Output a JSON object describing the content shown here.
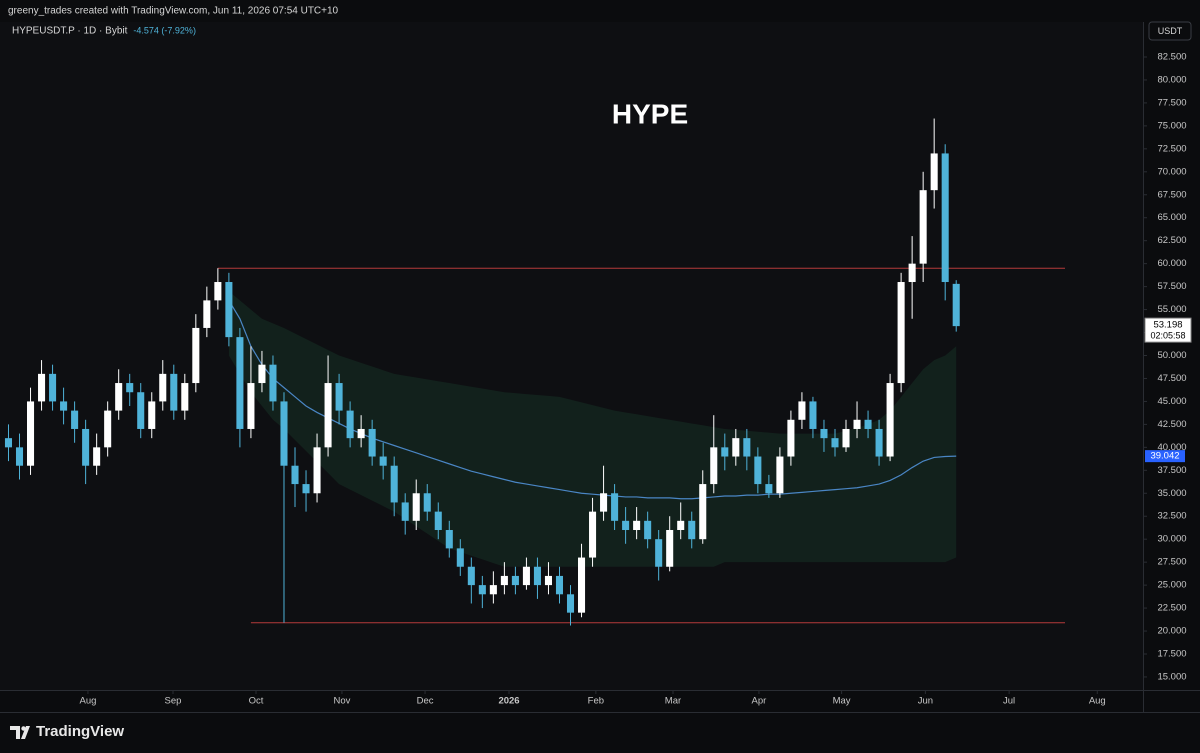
{
  "header": {
    "credit": "greeny_trades created with TradingView.com, Jun 11, 2026 07:54 UTC+10",
    "logo": "TradingView"
  },
  "chart_data": {
    "type": "candlestick",
    "title": "HYPE",
    "symbol": "HYPEUSDT.P · 1D · Bybit",
    "change": "-4.574 (-7.92%)",
    "currency": "USDT",
    "countdown": "02:05:58",
    "categories": [
      null,
      null,
      null,
      null,
      null,
      null,
      null,
      null,
      null,
      null,
      null,
      null,
      null,
      null,
      null,
      null,
      null,
      null,
      null,
      null,
      null,
      null,
      null,
      null,
      null,
      null,
      null,
      null,
      null,
      null,
      null,
      null,
      null,
      null,
      null,
      null,
      null,
      null,
      null,
      null,
      null,
      null,
      null,
      null,
      null,
      null,
      null,
      null,
      null,
      null,
      null,
      null,
      null,
      null,
      null,
      null,
      null,
      null,
      null,
      null,
      null,
      null,
      null,
      null,
      null,
      null,
      null,
      null,
      null,
      null,
      null,
      null,
      null,
      null,
      null,
      null,
      null,
      null,
      null,
      null,
      null,
      null,
      null,
      null,
      null,
      null,
      null
    ],
    "open": [
      41,
      40,
      38,
      45,
      48,
      45,
      44,
      42,
      38,
      40,
      44,
      47,
      46,
      42,
      45,
      48,
      44,
      47,
      53,
      56,
      58,
      52,
      42,
      47,
      49,
      45,
      38,
      36,
      35,
      40,
      47,
      44,
      41,
      42,
      39,
      38,
      34,
      32,
      35,
      33,
      31,
      29,
      27,
      25,
      24,
      25,
      26,
      25,
      27,
      25,
      26,
      24,
      22,
      28,
      33,
      35,
      32,
      31,
      32,
      30,
      27,
      31,
      32,
      30,
      36,
      40,
      39,
      41,
      39,
      36,
      35,
      39,
      43,
      45,
      42,
      41,
      40,
      42,
      43,
      42,
      39,
      47,
      58,
      60,
      68,
      72,
      57.8
    ],
    "high": [
      42.5,
      41.5,
      46.5,
      49.5,
      49,
      46.5,
      45,
      43,
      41.5,
      45,
      48.5,
      48,
      47,
      46,
      49.5,
      49,
      48,
      54.5,
      57.5,
      59.5,
      59,
      53,
      51,
      50.5,
      50,
      46,
      40,
      37.5,
      41.5,
      50,
      48,
      45,
      43.5,
      43,
      40.5,
      39,
      35,
      36.5,
      36,
      34,
      32,
      30,
      28,
      26,
      26.5,
      27.5,
      27,
      28,
      28,
      27.5,
      27,
      25,
      29.5,
      34.5,
      38,
      36,
      33.5,
      33.5,
      33,
      31,
      32.5,
      34,
      33,
      37.5,
      43.5,
      41.5,
      42,
      42,
      40,
      37,
      40,
      44,
      46,
      45.5,
      43,
      42,
      43,
      45,
      44,
      43,
      48,
      59,
      63,
      70,
      75.8,
      73,
      58.2
    ],
    "low": [
      38.5,
      36.5,
      37,
      44,
      44,
      42.5,
      40.5,
      36,
      37,
      39,
      43,
      44.5,
      41,
      41,
      44,
      43,
      43,
      46,
      52,
      55,
      51,
      40,
      41,
      46,
      44,
      20.9,
      33.5,
      33,
      34,
      39,
      42.5,
      40,
      40,
      38,
      36.5,
      32.5,
      30.5,
      31,
      32,
      30,
      28,
      26,
      23,
      22.5,
      23,
      24,
      24,
      24.5,
      23.5,
      24,
      23,
      20.6,
      21.5,
      27,
      32,
      31,
      29.5,
      30,
      29,
      25.5,
      26.5,
      30,
      29,
      29.5,
      35,
      37.5,
      38,
      37.5,
      35,
      34.5,
      34.5,
      38,
      42,
      41,
      39.5,
      39,
      39.5,
      41,
      41,
      38,
      38.5,
      46,
      54,
      58,
      66,
      56,
      52.6
    ],
    "close": [
      40,
      38,
      45,
      48,
      45,
      44,
      42,
      38,
      40,
      44,
      47,
      46,
      42,
      45,
      48,
      44,
      47,
      53,
      56,
      58,
      52,
      42,
      47,
      49,
      45,
      38,
      36,
      35,
      40,
      47,
      44,
      41,
      42,
      39,
      38,
      34,
      32,
      35,
      33,
      31,
      29,
      27,
      25,
      24,
      25,
      26,
      25,
      27,
      25,
      26,
      24,
      22,
      28,
      33,
      35,
      32,
      31,
      32,
      30,
      27,
      31,
      32,
      30,
      36,
      40,
      39,
      41,
      39,
      36,
      35,
      39,
      43,
      45,
      42,
      41,
      40,
      42,
      43,
      42,
      39,
      47,
      58,
      60,
      68,
      72,
      58,
      53.198
    ],
    "up_color": "#ffffff",
    "down_color": "#4fb3d9",
    "ma": {
      "color": "#4a86c5",
      "values": [
        null,
        null,
        null,
        null,
        null,
        null,
        null,
        null,
        null,
        null,
        null,
        null,
        null,
        null,
        null,
        null,
        null,
        null,
        null,
        null,
        56,
        54,
        51,
        49,
        47.5,
        46.5,
        45.5,
        44.5,
        43.8,
        43.2,
        42.6,
        42,
        41.5,
        41,
        40.6,
        40.2,
        39.8,
        39.4,
        39,
        38.6,
        38.2,
        37.8,
        37.4,
        37.1,
        36.8,
        36.5,
        36.2,
        36,
        35.8,
        35.6,
        35.4,
        35.2,
        35,
        34.9,
        34.8,
        34.7,
        34.6,
        34.6,
        34.5,
        34.5,
        34.5,
        34.4,
        34.4,
        34.5,
        34.6,
        34.7,
        34.7,
        34.8,
        34.8,
        34.9,
        34.9,
        35,
        35.1,
        35.2,
        35.3,
        35.4,
        35.5,
        35.6,
        35.8,
        36,
        36.4,
        37,
        37.8,
        38.5,
        38.9,
        39,
        39.042
      ]
    },
    "band": {
      "color": "#12211c",
      "upper": [
        null,
        null,
        null,
        null,
        null,
        null,
        null,
        null,
        null,
        null,
        null,
        null,
        null,
        null,
        null,
        null,
        null,
        null,
        null,
        null,
        57,
        56,
        55,
        54,
        53.5,
        53,
        52.4,
        51.8,
        51.2,
        50.6,
        50,
        49.6,
        49.2,
        48.8,
        48.4,
        48,
        47.8,
        47.6,
        47.4,
        47.2,
        47,
        46.8,
        46.6,
        46.4,
        46.2,
        46,
        45.9,
        45.8,
        45.7,
        45.6,
        45.5,
        45.2,
        44.9,
        44.6,
        44.3,
        44,
        43.8,
        43.6,
        43.4,
        43.2,
        43,
        42.8,
        42.6,
        42.4,
        42.2,
        42,
        41.9,
        41.8,
        41.7,
        41.6,
        41.5,
        41.5,
        41.5,
        41.5,
        41.5,
        41.5,
        41.8,
        42.1,
        42.5,
        43,
        44,
        45.5,
        47,
        48.5,
        49.5,
        50,
        51
      ],
      "lower": [
        null,
        null,
        null,
        null,
        null,
        null,
        null,
        null,
        null,
        null,
        null,
        null,
        null,
        null,
        null,
        null,
        null,
        null,
        null,
        null,
        50,
        48,
        46,
        44.5,
        43,
        42,
        40.8,
        39.6,
        38.4,
        37.2,
        36,
        35.4,
        34.8,
        34.2,
        33.6,
        33,
        32.2,
        31.4,
        30.6,
        29.8,
        29,
        28.6,
        28.2,
        27.8,
        27.4,
        27,
        27,
        27,
        27,
        27,
        27,
        27,
        27,
        27,
        27,
        27,
        27,
        27,
        27,
        27,
        27,
        27,
        27,
        27,
        27,
        27.5,
        27.5,
        27.5,
        27.5,
        27.5,
        27.5,
        27.5,
        27.5,
        27.5,
        27.5,
        27.5,
        27.5,
        27.5,
        27.5,
        27.5,
        27.5,
        27.5,
        27.5,
        27.5,
        27.5,
        27.5,
        28
      ]
    },
    "levels": [
      59.5,
      20.9
    ],
    "level_color": "#b33a3a",
    "xlim": [
      -0.77,
      102.95
    ],
    "xticks": [
      {
        "value": 7.21,
        "label": "Aug"
      },
      {
        "value": 14.93,
        "label": "Sep"
      },
      {
        "value": 22.46,
        "label": "Oct"
      },
      {
        "value": 30.26,
        "label": "Nov"
      },
      {
        "value": 37.8,
        "label": "Dec"
      },
      {
        "value": 45.42,
        "label": "2026"
      },
      {
        "value": 53.3,
        "label": "Feb"
      },
      {
        "value": 60.3,
        "label": "Mar"
      },
      {
        "value": 68.1,
        "label": "Apr"
      },
      {
        "value": 75.6,
        "label": "May"
      },
      {
        "value": 83.2,
        "label": "Jun"
      },
      {
        "value": 90.8,
        "label": "Jul"
      },
      {
        "value": 98.8,
        "label": "Aug"
      }
    ],
    "ylim": [
      13.58,
      86.31
    ],
    "yticks": [
      {
        "value": 15,
        "label": "15.000"
      },
      {
        "value": 17.5,
        "label": "17.500"
      },
      {
        "value": 20,
        "label": "20.000"
      },
      {
        "value": 22.5,
        "label": "22.500"
      },
      {
        "value": 25,
        "label": "25.000"
      },
      {
        "value": 27.5,
        "label": "27.500"
      },
      {
        "value": 30,
        "label": "30.000"
      },
      {
        "value": 32.5,
        "label": "32.500"
      },
      {
        "value": 35,
        "label": "35.000"
      },
      {
        "value": 37.5,
        "label": "37.500"
      },
      {
        "value": 40,
        "label": "40.000"
      },
      {
        "value": 42.5,
        "label": "42.500"
      },
      {
        "value": 45,
        "label": "45.000"
      },
      {
        "value": 47.5,
        "label": "47.500"
      },
      {
        "value": 50,
        "label": "50.000"
      },
      {
        "value": 52.5,
        "label": "52.500"
      },
      {
        "value": 55,
        "label": "55.000"
      },
      {
        "value": 57.5,
        "label": "57.500"
      },
      {
        "value": 60,
        "label": "60.000"
      },
      {
        "value": 62.5,
        "label": "62.500"
      },
      {
        "value": 65,
        "label": "65.000"
      },
      {
        "value": 67.5,
        "label": "67.500"
      },
      {
        "value": 70,
        "label": "70.000"
      },
      {
        "value": 72.5,
        "label": "72.500"
      },
      {
        "value": 75,
        "label": "75.000"
      },
      {
        "value": 77.5,
        "label": "77.500"
      },
      {
        "value": 80,
        "label": "80.000"
      },
      {
        "value": 82.5,
        "label": "82.500"
      }
    ],
    "bold_xtick": "2026"
  }
}
